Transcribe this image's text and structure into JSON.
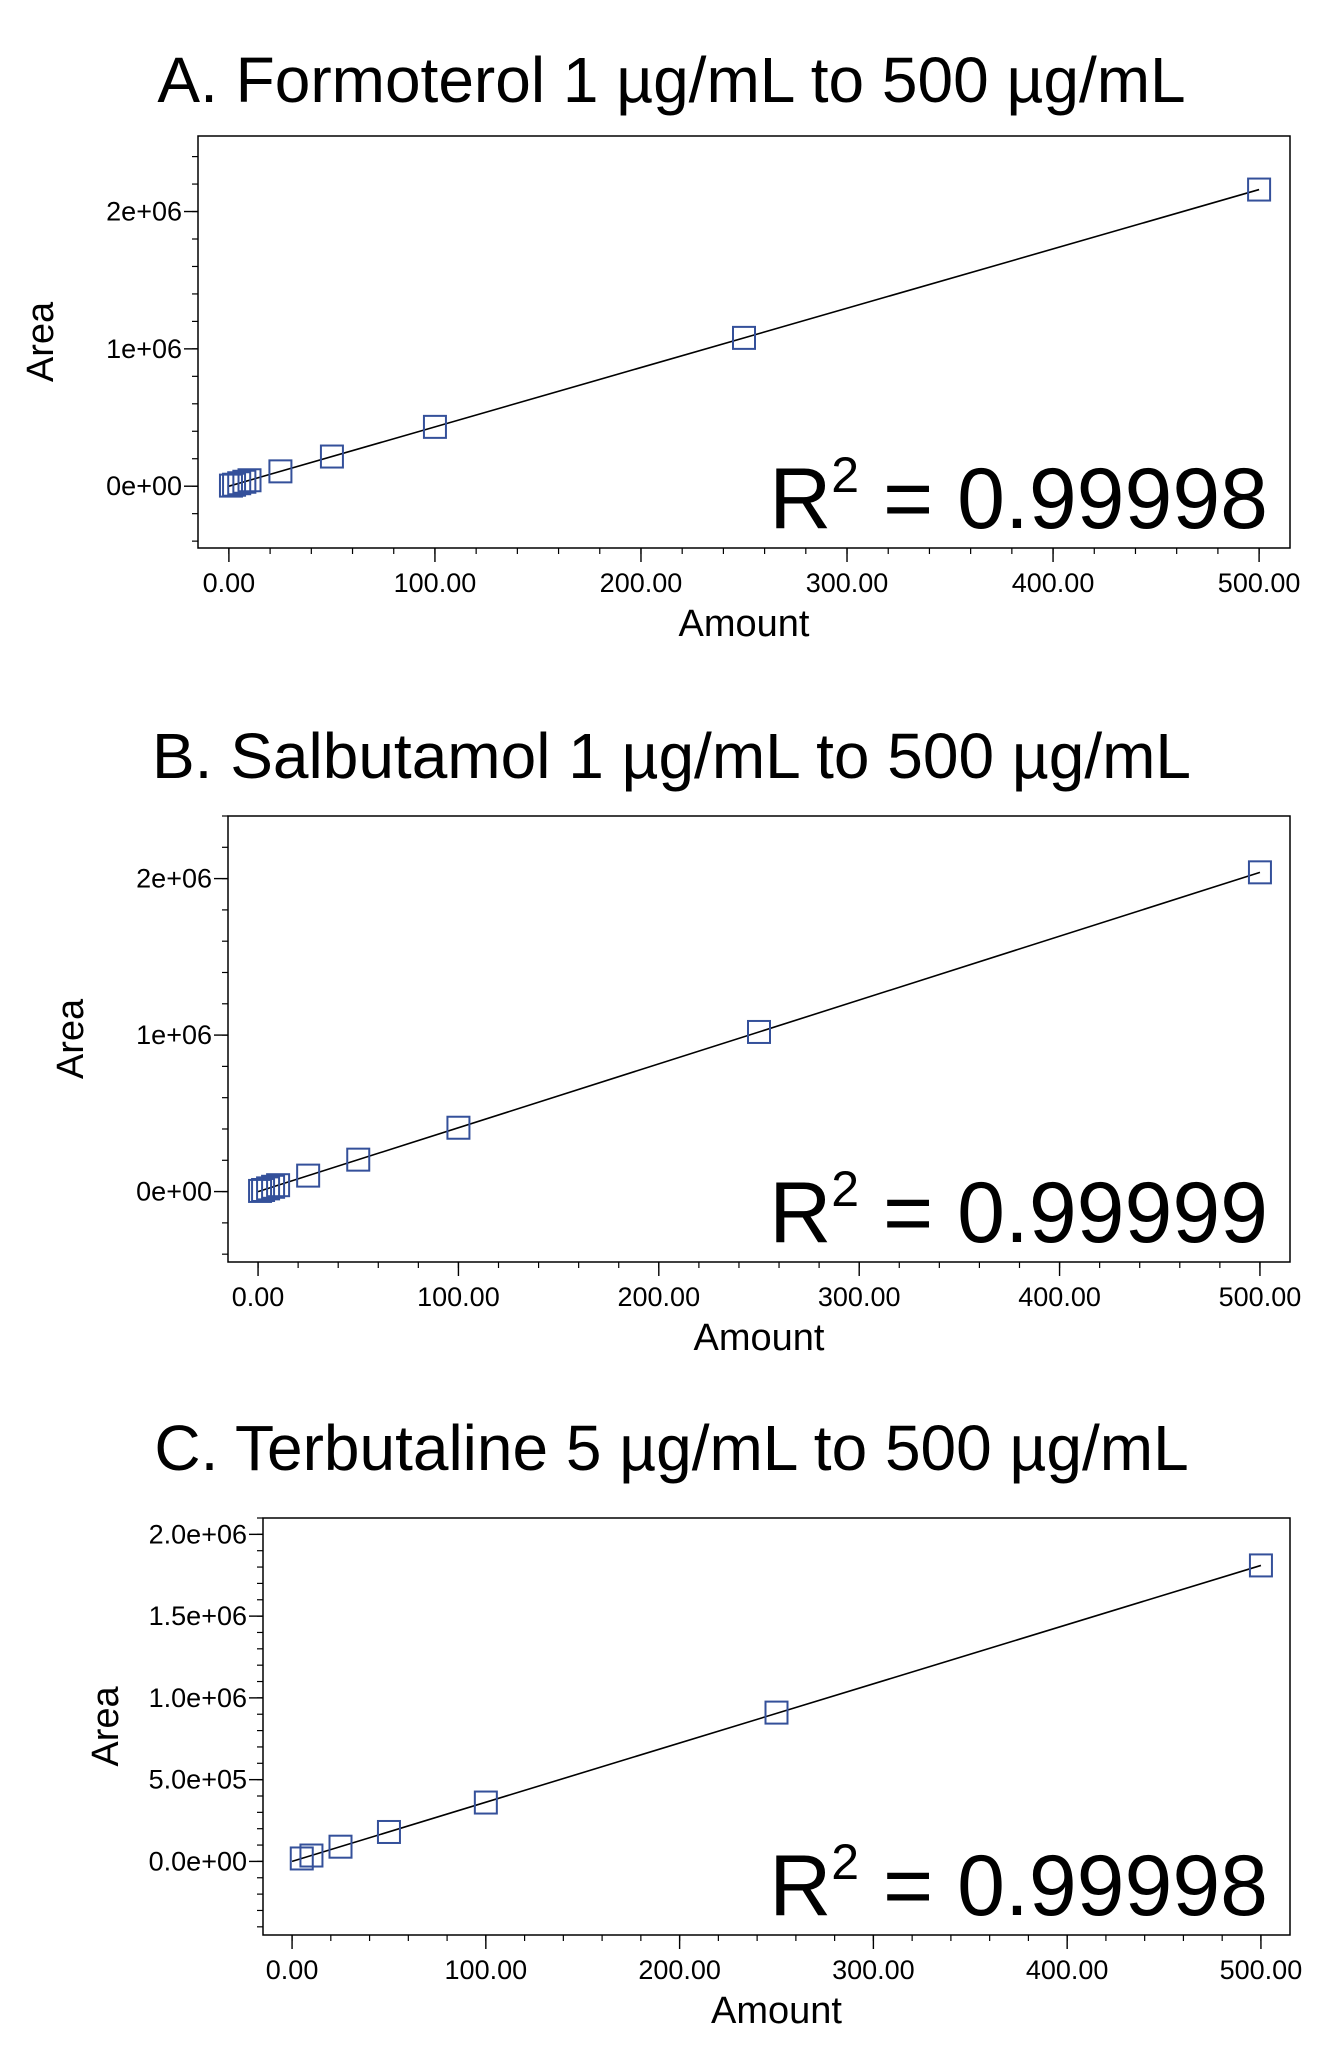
{
  "chart_data": [
    {
      "type": "scatter",
      "title": "A. Formoterol 1 µg/mL to 500 µg/mL",
      "xlabel": "Amount",
      "ylabel": "Area",
      "xlim": [
        -15,
        515
      ],
      "ylim": [
        -450000,
        2550000
      ],
      "x_ticks": [
        {
          "value": 0,
          "label": "0.00"
        },
        {
          "value": 100,
          "label": "100.00"
        },
        {
          "value": 200,
          "label": "200.00"
        },
        {
          "value": 300,
          "label": "300.00"
        },
        {
          "value": 400,
          "label": "400.00"
        },
        {
          "value": 500,
          "label": "500.00"
        }
      ],
      "y_ticks": [
        {
          "value": 0,
          "label": "0e+00"
        },
        {
          "value": 1000000,
          "label": "1e+06"
        },
        {
          "value": 2000000,
          "label": "2e+06"
        }
      ],
      "y_minor_step": 200000,
      "x": [
        1,
        2.5,
        5,
        7.5,
        10,
        25,
        50,
        100,
        250,
        500
      ],
      "y": [
        4300,
        10800,
        21600,
        32400,
        43200,
        108000,
        216000,
        432000,
        1080000,
        2160000
      ],
      "fit_line": [
        [
          0,
          0
        ],
        [
          500,
          2160000
        ]
      ],
      "annotation": {
        "label": "R",
        "sup": "2",
        "value": " = 0.99998"
      },
      "marker_color": "#34509a",
      "line_color": "#000000"
    },
    {
      "type": "scatter",
      "title": "B. Salbutamol 1 µg/mL to 500 µg/mL",
      "xlabel": "Amount",
      "ylabel": "Area",
      "xlim": [
        -15,
        515
      ],
      "ylim": [
        -450000,
        2400000
      ],
      "x_ticks": [
        {
          "value": 0,
          "label": "0.00"
        },
        {
          "value": 100,
          "label": "100.00"
        },
        {
          "value": 200,
          "label": "200.00"
        },
        {
          "value": 300,
          "label": "300.00"
        },
        {
          "value": 400,
          "label": "400.00"
        },
        {
          "value": 500,
          "label": "500.00"
        }
      ],
      "y_ticks": [
        {
          "value": 0,
          "label": "0e+00"
        },
        {
          "value": 1000000,
          "label": "1e+06"
        },
        {
          "value": 2000000,
          "label": "2e+06"
        }
      ],
      "y_minor_step": 200000,
      "x": [
        1,
        2.5,
        5,
        7.5,
        10,
        25,
        50,
        100,
        250,
        500
      ],
      "y": [
        4100,
        10200,
        20400,
        30600,
        40800,
        102000,
        204000,
        408000,
        1020000,
        2040000
      ],
      "fit_line": [
        [
          0,
          0
        ],
        [
          500,
          2040000
        ]
      ],
      "annotation": {
        "label": "R",
        "sup": "2",
        "value": " = 0.99999"
      },
      "marker_color": "#34509a",
      "line_color": "#000000"
    },
    {
      "type": "scatter",
      "title": "C. Terbutaline 5 µg/mL to 500 µg/mL",
      "xlabel": "Amount",
      "ylabel": "Area",
      "xlim": [
        -15,
        515
      ],
      "ylim": [
        -450000,
        2100000
      ],
      "x_ticks": [
        {
          "value": 0,
          "label": "0.00"
        },
        {
          "value": 100,
          "label": "100.00"
        },
        {
          "value": 200,
          "label": "200.00"
        },
        {
          "value": 300,
          "label": "300.00"
        },
        {
          "value": 400,
          "label": "400.00"
        },
        {
          "value": 500,
          "label": "500.00"
        }
      ],
      "y_ticks": [
        {
          "value": 0,
          "label": "0.0e+00"
        },
        {
          "value": 500000,
          "label": "5.0e+05"
        },
        {
          "value": 1000000,
          "label": "1.0e+06"
        },
        {
          "value": 1500000,
          "label": "1.5e+06"
        },
        {
          "value": 2000000,
          "label": "2.0e+06"
        }
      ],
      "y_minor_step": 100000,
      "x": [
        5,
        10,
        25,
        50,
        100,
        250,
        500
      ],
      "y": [
        18000,
        36000,
        90000,
        180000,
        360000,
        910000,
        1810000
      ],
      "fit_line": [
        [
          0,
          0
        ],
        [
          500,
          1810000
        ]
      ],
      "annotation": {
        "label": "R",
        "sup": "2",
        "value": " = 0.99998"
      },
      "marker_color": "#34509a",
      "line_color": "#000000"
    }
  ]
}
